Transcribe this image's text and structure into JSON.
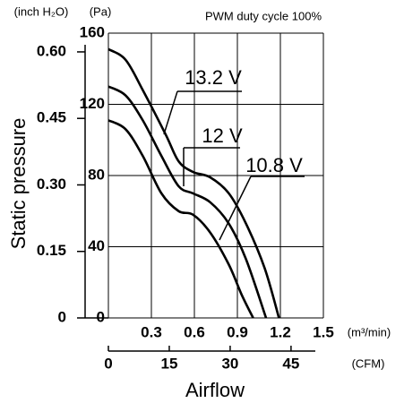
{
  "chart_data": {
    "type": "line",
    "title": "PWM duty cycle 100%",
    "y_label": "Static pressure",
    "x_label": "Airflow",
    "y_unit": "(Pa)",
    "y2_unit": "(inch H₂O)",
    "x_unit": "(m³/min)",
    "x2_unit": "(CFM)",
    "xlim": [
      0,
      1.5
    ],
    "xticks": [
      0,
      0.3,
      0.6,
      0.9,
      1.2,
      1.5
    ],
    "ylim": [
      0,
      160
    ],
    "yticks": [
      0,
      40,
      80,
      120,
      160
    ],
    "y2lim": [
      0,
      0.6423
    ],
    "y2ticks": [
      0,
      0.15,
      {
        "value": 0.3,
        "label": "0.30"
      },
      0.45,
      {
        "value": 0.6,
        "label": "0.60"
      }
    ],
    "x2lim": [
      0,
      52.97
    ],
    "x2ticks": [
      0,
      15,
      30,
      45
    ],
    "grid": true,
    "series": [
      {
        "name": "13.2 V",
        "color": "#000000",
        "x": [
          0,
          0.12,
          0.24,
          0.4,
          0.49,
          0.59,
          0.71,
          0.84,
          0.96,
          1.09,
          1.19
        ],
        "values": [
          151,
          145,
          128,
          103,
          88,
          82,
          79,
          70,
          53,
          28,
          0
        ]
      },
      {
        "name": "12 V",
        "color": "#000000",
        "x": [
          0,
          0.12,
          0.24,
          0.37,
          0.49,
          0.59,
          0.71,
          0.84,
          0.96,
          1.1
        ],
        "values": [
          130,
          125,
          111,
          91,
          74,
          70,
          65,
          53,
          33,
          0
        ]
      },
      {
        "name": "10.8 V",
        "color": "#000000",
        "x": [
          0,
          0.12,
          0.24,
          0.37,
          0.49,
          0.59,
          0.71,
          0.84,
          0.93,
          1.01
        ],
        "values": [
          111,
          106,
          91,
          70,
          60,
          58,
          48,
          30,
          13,
          0
        ]
      }
    ]
  }
}
